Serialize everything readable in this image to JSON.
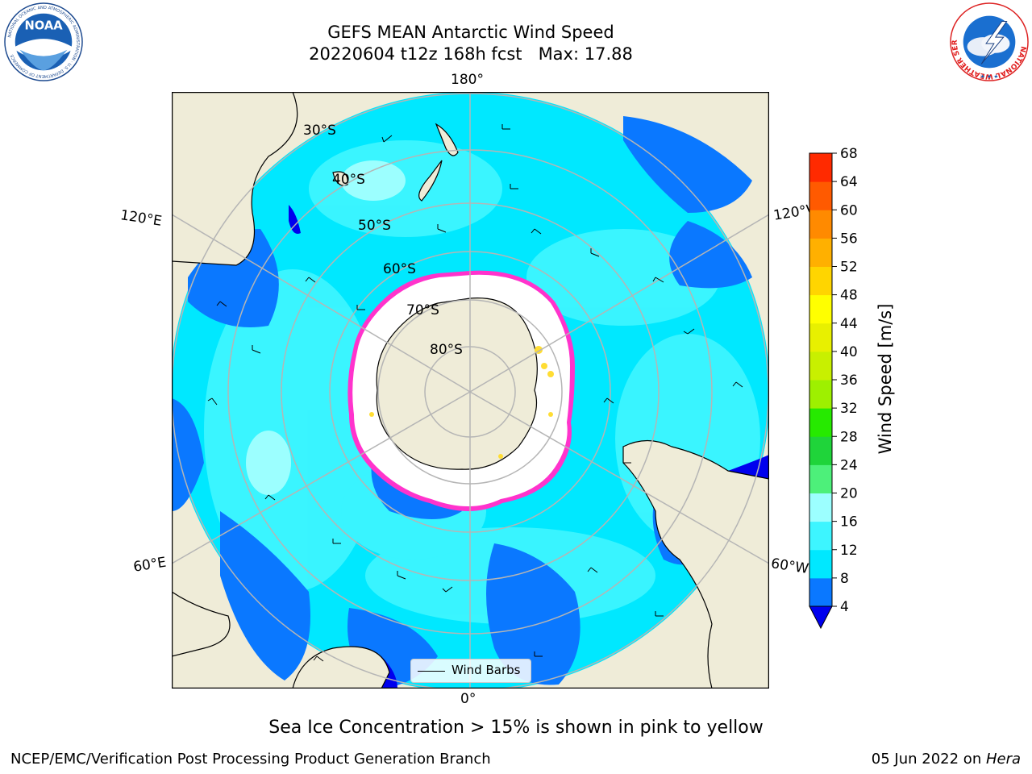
{
  "header": {
    "title_line1": "GEFS MEAN Antarctic Wind Speed",
    "title_line2": "20220604 t12z 168h fcst   Max: 17.88"
  },
  "logos": {
    "left": {
      "name": "noaa-logo",
      "text": "NOAA",
      "ring_text": "NATIONAL OCEANIC AND ATMOSPHERIC ADMINISTRATION · U.S. DEPARTMENT OF COMMERCE"
    },
    "right": {
      "name": "nws-logo",
      "ring_text": "NATIONAL WEATHER SERVICE"
    }
  },
  "map": {
    "projection": "south-polar-stereographic",
    "longitude_labels": {
      "top": "180°",
      "bottom": "0°",
      "upper_left": "120°E",
      "upper_right": "120°W",
      "lower_left": "60°E",
      "lower_right": "60°W"
    },
    "latitude_labels": [
      "30°S",
      "40°S",
      "50°S",
      "60°S",
      "70°S",
      "80°S"
    ],
    "colors": {
      "land": "#efecd8",
      "ice_shelf": "#ffffff",
      "grid": "#b5b5b5",
      "sea_ice_edge_pink": "#ff33cc",
      "sea_ice_edge_yellow": "#ffdd33"
    },
    "legend": {
      "label": "Wind Barbs"
    }
  },
  "colorbar": {
    "label": "Wind Speed [m/s]",
    "ticks": [
      "4",
      "8",
      "12",
      "16",
      "20",
      "24",
      "28",
      "32",
      "36",
      "40",
      "44",
      "48",
      "52",
      "56",
      "60",
      "64",
      "68"
    ],
    "colors": [
      "#0a78ff",
      "#00e8ff",
      "#3df5ff",
      "#9cffff",
      "#4df07a",
      "#1fd43a",
      "#26ea00",
      "#9ef000",
      "#c8f000",
      "#e8f000",
      "#ffff00",
      "#ffd500",
      "#ffb000",
      "#ff8a00",
      "#ff5a00",
      "#ff2a00"
    ],
    "under_color": "#0000ee"
  },
  "caption": "Sea Ice Concentration > 15% is shown in pink to yellow",
  "footer": {
    "left": "NCEP/EMC/Verification Post Processing Product Generation Branch",
    "right_prefix": "05 Jun 2022 on ",
    "right_host": "Hera"
  }
}
